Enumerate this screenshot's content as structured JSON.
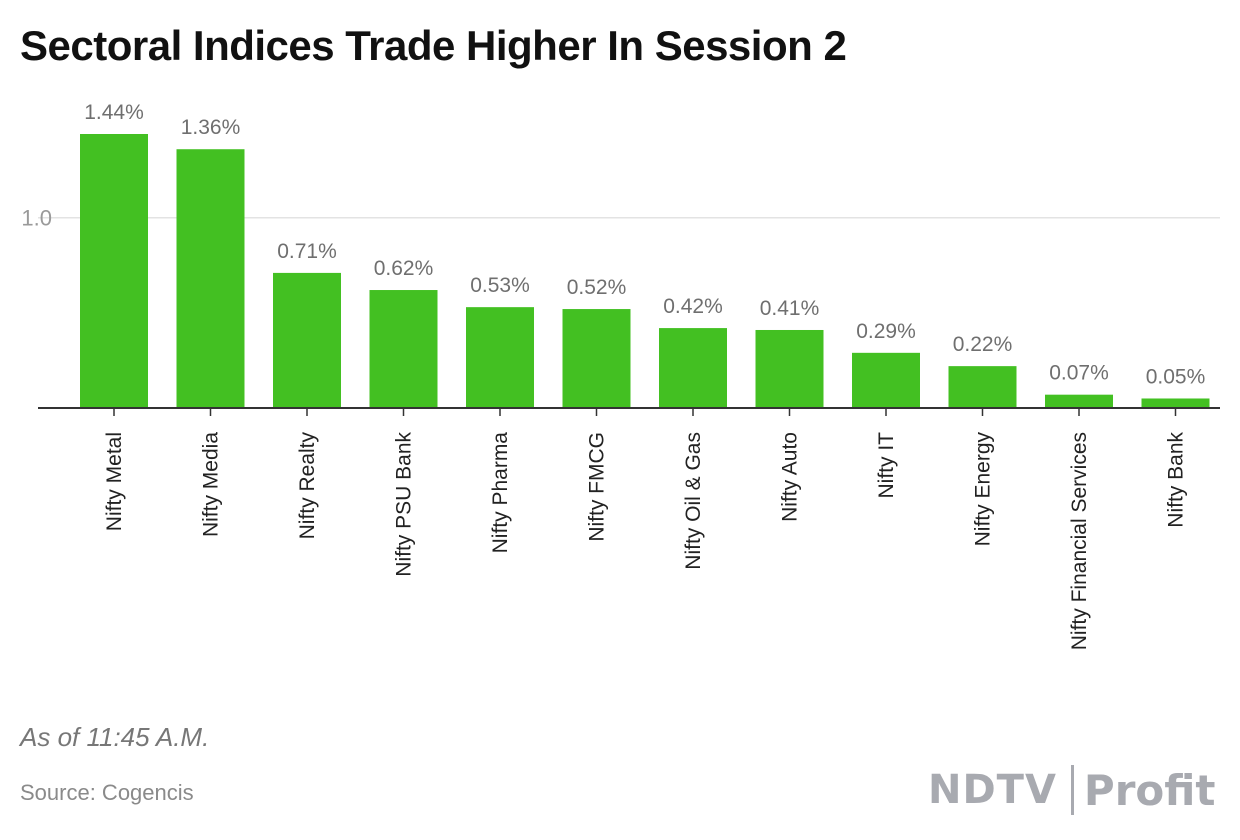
{
  "header": {
    "title": "Sectoral Indices Trade Higher In Session 2"
  },
  "footer": {
    "note": "As of 11:45 A.M.",
    "source": "Source: Cogencis",
    "logo_left": "NDTV",
    "logo_right": "Profit"
  },
  "colors": {
    "bar": "#43c022",
    "grid": "#e3e3e3",
    "axis": "#333333",
    "value_label": "#6f6f6f",
    "tick_label": "#9a9a9a",
    "category_label": "#222222"
  },
  "chart_data": {
    "type": "bar",
    "categories": [
      "Nifty Metal",
      "Nifty Media",
      "Nifty Realty",
      "Nifty PSU Bank",
      "Nifty Pharma",
      "Nifty FMCG",
      "Nifty Oil & Gas",
      "Nifty Auto",
      "Nifty IT",
      "Nifty Energy",
      "Nifty Financial Services",
      "Nifty Bank"
    ],
    "values": [
      1.44,
      1.36,
      0.71,
      0.62,
      0.53,
      0.52,
      0.42,
      0.41,
      0.29,
      0.22,
      0.07,
      0.05
    ],
    "value_labels": [
      "1.44%",
      "1.36%",
      "0.71%",
      "0.62%",
      "0.53%",
      "0.52%",
      "0.42%",
      "0.41%",
      "0.29%",
      "0.22%",
      "0.07%",
      "0.05%"
    ],
    "title": "Sectoral Indices Trade Higher In Session 2",
    "xlabel": "",
    "ylabel": "",
    "ylim": [
      0,
      1.44
    ],
    "yticks": [
      1.0
    ],
    "ytick_labels": [
      "1.0"
    ],
    "grid": true,
    "legend": "none"
  }
}
